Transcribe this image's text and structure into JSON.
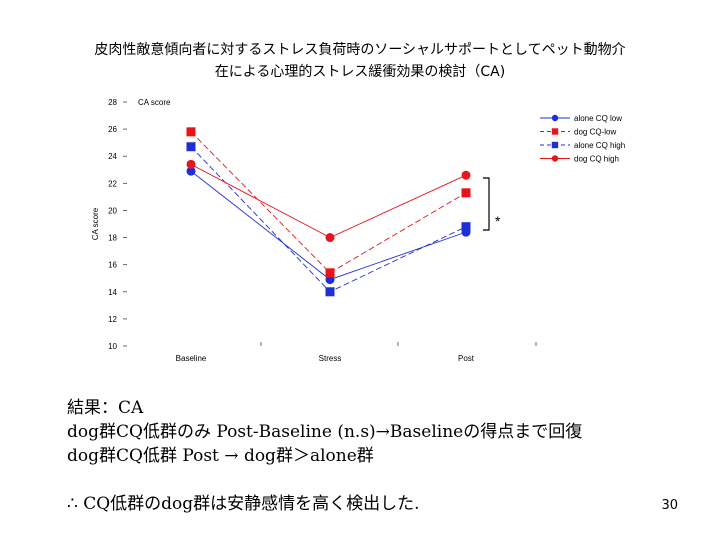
{
  "title_line1": "皮肉性敵意傾向者に対するストレス負荷時のソーシャルサポートとしてペット動物介",
  "title_line2": "在による心理的ストレス緩衝効果の検討（CA)",
  "chart_data": {
    "type": "line",
    "categories": [
      "Baseline",
      "Stress",
      "Post"
    ],
    "ylim": [
      10,
      28
    ],
    "yticks": [
      10,
      12,
      14,
      16,
      18,
      20,
      22,
      24,
      26,
      28
    ],
    "ylabel": "CA score",
    "top_label": "CA score",
    "series": [
      {
        "name": "alone CQ low",
        "color": "#1f2fd6",
        "marker": "circle",
        "dash": "solid",
        "values": [
          22.9,
          14.9,
          18.4
        ]
      },
      {
        "name": "dog CQ-low",
        "color": "#e8141b",
        "marker": "square",
        "dash": "dashed",
        "values": [
          25.8,
          15.4,
          21.3
        ]
      },
      {
        "name": "alone CQ high",
        "color": "#1f2fd6",
        "marker": "square",
        "dash": "dashed",
        "values": [
          24.7,
          14.0,
          18.8
        ]
      },
      {
        "name": "dog CQ high",
        "color": "#e8141b",
        "marker": "circle",
        "dash": "solid",
        "values": [
          23.4,
          18.0,
          22.6
        ]
      }
    ],
    "annotation": "*"
  },
  "result_lines": [
    "結果：CA",
    "dog群CQ低群のみ Post-Baseline (n.s)→Baselineの得点まで回復",
    "dog群CQ低群 Post → dog群＞alone群",
    "∴ CQ低群のdog群は安静感情を高く検出した."
  ],
  "page_number": "30"
}
